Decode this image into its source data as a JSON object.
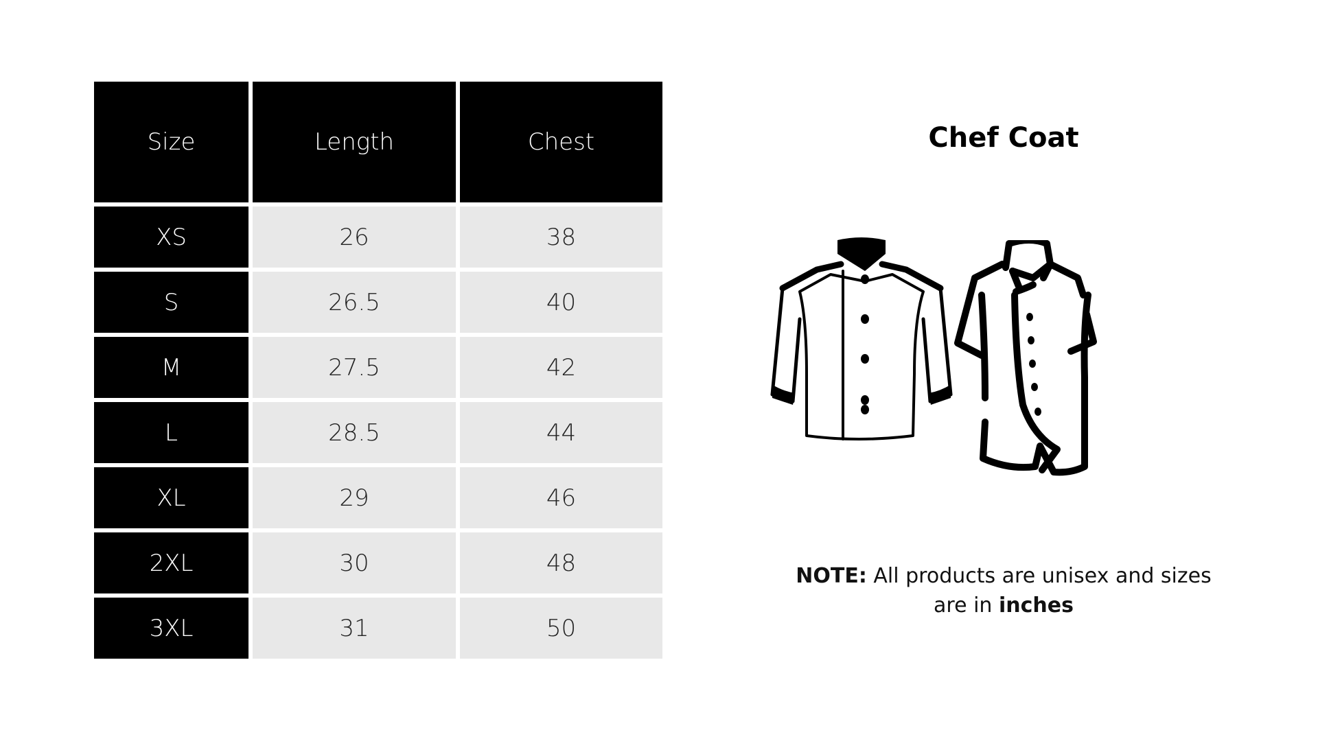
{
  "table": {
    "headers": [
      "Size",
      "Length",
      "Chest"
    ],
    "rows": [
      [
        "XS",
        "26",
        "38"
      ],
      [
        "S",
        "26.5",
        "40"
      ],
      [
        "M",
        "27.5",
        "42"
      ],
      [
        "L",
        "28.5",
        "44"
      ],
      [
        "XL",
        "29",
        "46"
      ],
      [
        "2XL",
        "30",
        "48"
      ],
      [
        "3XL",
        "31",
        "50"
      ]
    ]
  },
  "product": {
    "title": "Chef Coat"
  },
  "note": {
    "label": "NOTE:",
    "text1": " All products are unisex and sizes are in ",
    "unit": "inches"
  },
  "illustrations": [
    "long-sleeve-chef-coat-icon",
    "short-sleeve-chef-coat-icon"
  ],
  "colors": {
    "header_bg": "#000000",
    "cell_bg": "#e8e8e8"
  }
}
